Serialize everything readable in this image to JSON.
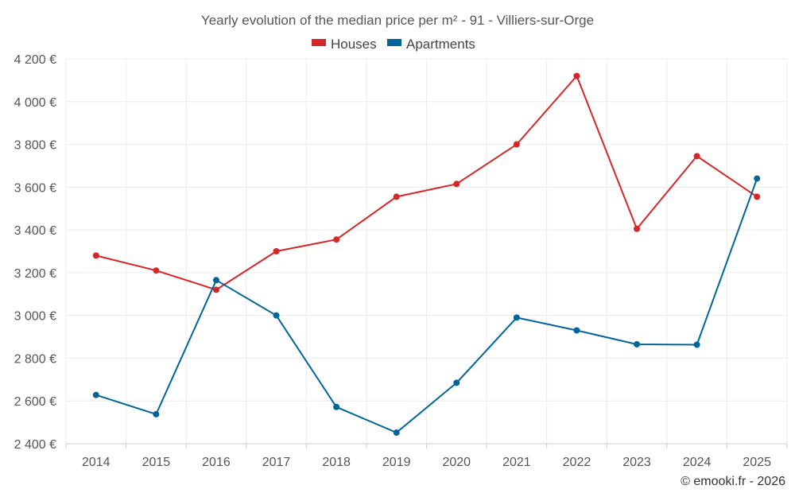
{
  "chart_data": {
    "type": "line",
    "title": "Yearly evolution of the median price per m² - 91 - Villiers-sur-Orge",
    "categories": [
      "2014",
      "2015",
      "2016",
      "2017",
      "2018",
      "2019",
      "2020",
      "2021",
      "2022",
      "2023",
      "2024",
      "2025"
    ],
    "series": [
      {
        "name": "Houses",
        "color": "#d62728",
        "values": [
          3280,
          3210,
          3120,
          3300,
          3355,
          3555,
          3615,
          3800,
          4120,
          3405,
          3745,
          3555
        ]
      },
      {
        "name": "Apartments",
        "color": "#006699",
        "values": [
          2628,
          2538,
          3165,
          3000,
          2572,
          2452,
          2685,
          2990,
          2930,
          2865,
          2863,
          3640
        ]
      }
    ],
    "y_ticks": [
      "2 400 €",
      "2 600 €",
      "2 800 €",
      "3 000 €",
      "3 200 €",
      "3 400 €",
      "3 600 €",
      "3 800 €",
      "4 000 €",
      "4 200 €"
    ],
    "ylim": [
      2400,
      4200
    ],
    "y_tick_step": 200,
    "xlabel": "",
    "ylabel": "",
    "grid": true,
    "legend_position": "top-center"
  },
  "credit": "© emooki.fr - 2026"
}
